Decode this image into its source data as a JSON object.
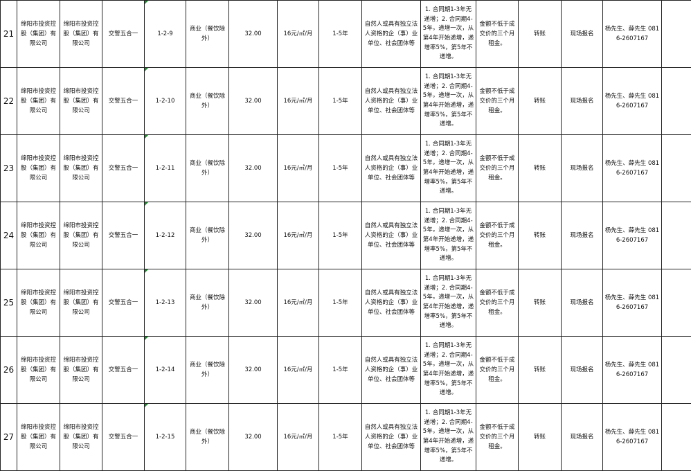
{
  "common": {
    "lessor": "绵阳市投资控股（集团）有限公司",
    "owner": "绵阳市投资控股（集团）有限公司",
    "location": "交警五合一",
    "use": "商业（餐饮除外）",
    "area": "32.00",
    "price": "16元/㎡/月",
    "term": "1-5年",
    "qualification": "自然人或具有独立法人资格的企（事）业单位、社会团体等",
    "increase": "1. 合同期1-3年无递增；2. 合同期4-5年，递增一次，从第4年开始递增，递增率5%，第5年不递增。",
    "deposit": "金额不低于成交价的三个月租金。",
    "payment": "转账",
    "signup": "现场报名",
    "contact": "杨先生、薛先生 0816-2607167",
    "extra": ""
  },
  "rows": [
    {
      "no": "21",
      "unit": "1-2-9"
    },
    {
      "no": "22",
      "unit": "1-2-10"
    },
    {
      "no": "23",
      "unit": "1-2-11"
    },
    {
      "no": "24",
      "unit": "1-2-12"
    },
    {
      "no": "25",
      "unit": "1-2-13"
    },
    {
      "no": "26",
      "unit": "1-2-14"
    },
    {
      "no": "27",
      "unit": "1-2-15"
    }
  ],
  "colors": {
    "grid": "#222222",
    "comment_marker": "#1a8a2a"
  }
}
